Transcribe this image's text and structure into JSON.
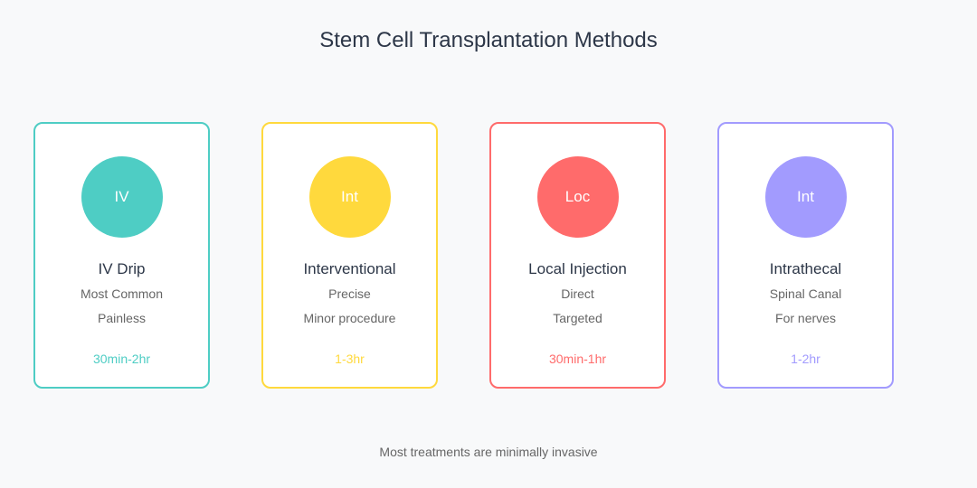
{
  "title": "Stem Cell Transplantation Methods",
  "methods": [
    {
      "icon_text": "IV",
      "name": "IV Drip",
      "features": [
        "Most Common",
        "Painless"
      ],
      "duration": "30min-2hr",
      "color": "#4ecdc4"
    },
    {
      "icon_text": "Int",
      "name": "Interventional",
      "features": [
        "Precise",
        "Minor procedure"
      ],
      "duration": "1-3hr",
      "color": "#ffd93d"
    },
    {
      "icon_text": "Loc",
      "name": "Local Injection",
      "features": [
        "Direct",
        "Targeted"
      ],
      "duration": "30min-1hr",
      "color": "#ff6b6b"
    },
    {
      "icon_text": "Int",
      "name": "Intrathecal",
      "features": [
        "Spinal Canal",
        "For nerves"
      ],
      "duration": "1-2hr",
      "color": "#a29bfe"
    }
  ],
  "footer": "Most treatments are minimally invasive"
}
